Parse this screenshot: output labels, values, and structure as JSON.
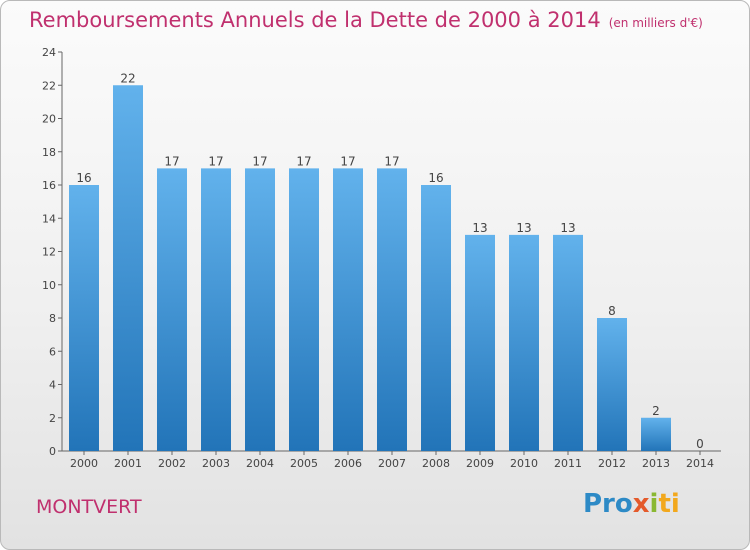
{
  "chart_data": {
    "type": "bar",
    "title": "Remboursements Annuels de la Dette de 2000 à 2014",
    "subtitle": "(en milliers d'€)",
    "categories": [
      "2000",
      "2001",
      "2002",
      "2003",
      "2004",
      "2005",
      "2006",
      "2007",
      "2008",
      "2009",
      "2010",
      "2011",
      "2012",
      "2013",
      "2014"
    ],
    "values": [
      16,
      22,
      17,
      17,
      17,
      17,
      17,
      17,
      16,
      13,
      13,
      13,
      8,
      2,
      0
    ],
    "ylim": [
      0,
      24
    ],
    "yticks": [
      0,
      2,
      4,
      6,
      8,
      10,
      12,
      14,
      16,
      18,
      20,
      22,
      24
    ],
    "grid": false,
    "colors": {
      "bar_light": "#62b2ec",
      "bar_dark": "#2274b8",
      "title": "#c0306e"
    }
  },
  "footer": {
    "town": "MONTVERT",
    "logo": [
      "Pro",
      "x",
      "i",
      "ti"
    ]
  }
}
